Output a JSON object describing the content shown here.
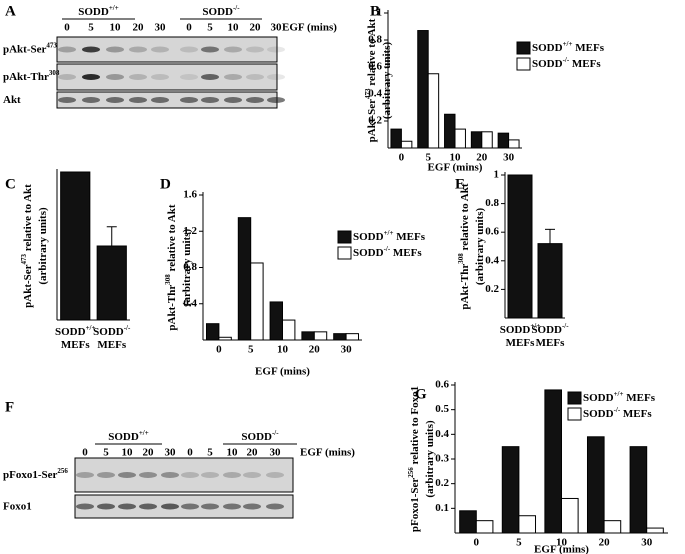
{
  "blots": [
    {
      "label": "A",
      "groups": [
        {
          "name": [
            {
              "text": "SODD"
            },
            {
              "sup": "+/+"
            }
          ],
          "lanes": [
            "0",
            "5",
            "10",
            "20",
            "30"
          ]
        },
        {
          "name": [
            {
              "text": "SODD"
            },
            {
              "sup": "-/-"
            }
          ],
          "lanes": [
            "0",
            "5",
            "10",
            "20",
            "30"
          ]
        }
      ],
      "lane_title": "EGF (mins)",
      "rows": [
        [
          {
            "text": "pAkt-Ser"
          },
          {
            "sup": "473"
          }
        ],
        [
          {
            "text": "pAkt-Thr"
          },
          {
            "sup": "308"
          }
        ],
        [
          {
            "text": "Akt"
          }
        ]
      ]
    },
    {
      "label": "F",
      "groups": [
        {
          "name": [
            {
              "text": "SODD"
            },
            {
              "sup": "+/+"
            }
          ],
          "lanes": [
            "0",
            "5",
            "10",
            "20",
            "30"
          ]
        },
        {
          "name": [
            {
              "text": "SODD"
            },
            {
              "sup": "-/-"
            }
          ],
          "lanes": [
            "0",
            "5",
            "10",
            "20",
            "30"
          ]
        }
      ],
      "lane_title": "EGF (mins)",
      "rows": [
        [
          {
            "text": "pFoxo1-Ser"
          },
          {
            "sup": "256"
          }
        ],
        [
          {
            "text": "Foxo1"
          }
        ]
      ]
    }
  ],
  "chart_data": [
    {
      "type": "bar",
      "label": "B",
      "ylabel": [
        [
          {
            "text": "pAkt-Ser"
          },
          {
            "sup": "473"
          },
          {
            "text": " relative to Akt"
          }
        ],
        [
          {
            "text": "(arbitrary units)"
          }
        ]
      ],
      "xlabel": "EGF (mins)",
      "categories": [
        "0",
        "5",
        "10",
        "20",
        "30"
      ],
      "series": [
        {
          "name": [
            {
              "text": "SODD"
            },
            {
              "sup": "+/+"
            },
            {
              "text": " MEFs"
            }
          ],
          "color": "#111111",
          "values": [
            0.14,
            0.87,
            0.25,
            0.12,
            0.11
          ]
        },
        {
          "name": [
            {
              "text": "SODD"
            },
            {
              "sup": "-/-"
            },
            {
              "text": " MEFs"
            }
          ],
          "color": "#ffffff",
          "values": [
            0.05,
            0.55,
            0.14,
            0.12,
            0.06
          ]
        }
      ],
      "ylim": [
        0,
        1
      ],
      "yticks": [
        0.2,
        0.4,
        0.6,
        0.8,
        1
      ],
      "legend": "right"
    },
    {
      "type": "bar",
      "label": "C",
      "ylabel": [
        [
          {
            "text": "pAkt-Ser"
          },
          {
            "sup": "473"
          },
          {
            "text": " relative to Akt"
          }
        ],
        [
          {
            "text": "(arbitrary units)"
          }
        ]
      ],
      "categories": [
        [
          [
            {
              "text": "SODD"
            },
            {
              "sup": "+/+"
            }
          ],
          [
            {
              "text": "MEFs"
            }
          ]
        ],
        [
          [
            {
              "text": "SODD"
            },
            {
              "sup": "-/-"
            }
          ],
          [
            {
              "text": "MEFs"
            }
          ]
        ]
      ],
      "series": [
        {
          "color": "#111111",
          "values": [
            1,
            0.5
          ],
          "errors": [
            null,
            0.13
          ]
        }
      ],
      "ylim": [
        0,
        1
      ]
    },
    {
      "type": "bar",
      "label": "D",
      "ylabel": [
        [
          {
            "text": "pAkt-Thr"
          },
          {
            "sup": "308"
          },
          {
            "text": " relative to Akt"
          }
        ],
        [
          {
            "text": "(arbitrary units)"
          }
        ]
      ],
      "xlabel": "EGF (mins)",
      "categories": [
        "0",
        "5",
        "10",
        "20",
        "30"
      ],
      "series": [
        {
          "name": [
            {
              "text": "SODD"
            },
            {
              "sup": "+/+"
            },
            {
              "text": " MEFs"
            }
          ],
          "color": "#111111",
          "values": [
            0.18,
            1.35,
            0.42,
            0.09,
            0.07
          ]
        },
        {
          "name": [
            {
              "text": "SODD"
            },
            {
              "sup": "-/-"
            },
            {
              "text": " MEFs"
            }
          ],
          "color": "#ffffff",
          "values": [
            0.03,
            0.85,
            0.22,
            0.09,
            0.07
          ]
        }
      ],
      "ylim": [
        0,
        1.6
      ],
      "yticks": [
        0.4,
        0.8,
        1.2,
        1.6
      ],
      "legend": "right"
    },
    {
      "type": "bar",
      "label": "E",
      "ylabel": [
        [
          {
            "text": "pAkt-Thr"
          },
          {
            "sup": "308"
          },
          {
            "text": " relative to Akt"
          }
        ],
        [
          {
            "text": "(arbitrary units)"
          }
        ]
      ],
      "categories": [
        [
          [
            {
              "text": "SODD"
            },
            {
              "sup": "+/+"
            }
          ],
          [
            {
              "text": "MEFs"
            }
          ]
        ],
        [
          [
            {
              "text": "SODD"
            },
            {
              "sup": "-/-"
            }
          ],
          [
            {
              "text": "MEFs"
            }
          ]
        ]
      ],
      "series": [
        {
          "color": "#111111",
          "values": [
            1,
            0.52
          ],
          "errors": [
            null,
            0.1
          ]
        }
      ],
      "ylim": [
        0,
        1
      ],
      "yticks": [
        0.2,
        0.4,
        0.6,
        0.8,
        1
      ]
    },
    {
      "type": "bar",
      "label": "G",
      "ylabel": [
        [
          {
            "text": "pFoxo1-Ser"
          },
          {
            "sup": "256"
          },
          {
            "text": " relative to Foxo1"
          }
        ],
        [
          {
            "text": "(arbitrary units)"
          }
        ]
      ],
      "xlabel": "EGF (mins)",
      "categories": [
        "0",
        "5",
        "10",
        "20",
        "30"
      ],
      "series": [
        {
          "name": [
            {
              "text": "SODD"
            },
            {
              "sup": "+/+"
            },
            {
              "text": " MEFs"
            }
          ],
          "color": "#111111",
          "values": [
            0.09,
            0.35,
            0.58,
            0.39,
            0.35
          ]
        },
        {
          "name": [
            {
              "text": "SODD"
            },
            {
              "sup": "-/-"
            },
            {
              "text": " MEFs"
            }
          ],
          "color": "#ffffff",
          "values": [
            0.05,
            0.07,
            0.14,
            0.05,
            0.02
          ]
        }
      ],
      "ylim": [
        0,
        0.6
      ],
      "yticks": [
        0.1,
        0.2,
        0.3,
        0.4,
        0.5,
        0.6
      ],
      "legend": "right"
    }
  ]
}
